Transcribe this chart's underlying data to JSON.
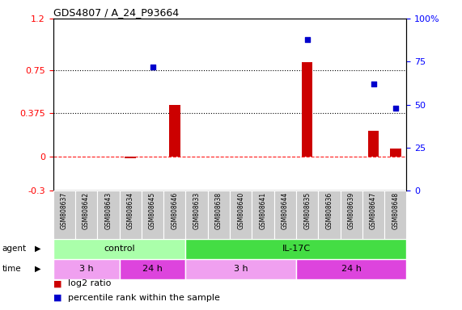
{
  "title": "GDS4807 / A_24_P93664",
  "samples": [
    "GSM808637",
    "GSM808642",
    "GSM808643",
    "GSM808634",
    "GSM808645",
    "GSM808646",
    "GSM808633",
    "GSM808638",
    "GSM808640",
    "GSM808641",
    "GSM808644",
    "GSM808635",
    "GSM808636",
    "GSM808639",
    "GSM808647",
    "GSM808648"
  ],
  "log2_ratio": [
    0,
    0,
    0,
    -0.02,
    0,
    0.45,
    0,
    0,
    0,
    0,
    0,
    0.82,
    0,
    0,
    0.22,
    0.07
  ],
  "percentile": [
    null,
    null,
    null,
    null,
    72,
    null,
    null,
    null,
    null,
    null,
    null,
    88,
    null,
    null,
    62,
    48
  ],
  "ylim_left": [
    -0.3,
    1.2
  ],
  "ylim_right": [
    0,
    100
  ],
  "yticks_left": [
    -0.3,
    0,
    0.375,
    0.75,
    1.2
  ],
  "yticks_right": [
    0,
    25,
    50,
    75,
    100
  ],
  "bar_color": "#cc0000",
  "dot_color": "#0000cc",
  "agent_groups": [
    {
      "label": "control",
      "start": 0,
      "end": 6,
      "color": "#aaffaa"
    },
    {
      "label": "IL-17C",
      "start": 6,
      "end": 16,
      "color": "#44dd44"
    }
  ],
  "time_groups": [
    {
      "label": "3 h",
      "start": 0,
      "end": 3,
      "color": "#f0a0f0"
    },
    {
      "label": "24 h",
      "start": 3,
      "end": 6,
      "color": "#dd44dd"
    },
    {
      "label": "3 h",
      "start": 6,
      "end": 11,
      "color": "#f0a0f0"
    },
    {
      "label": "24 h",
      "start": 11,
      "end": 16,
      "color": "#dd44dd"
    }
  ],
  "legend_bar_label": "log2 ratio",
  "legend_dot_label": "percentile rank within the sample"
}
